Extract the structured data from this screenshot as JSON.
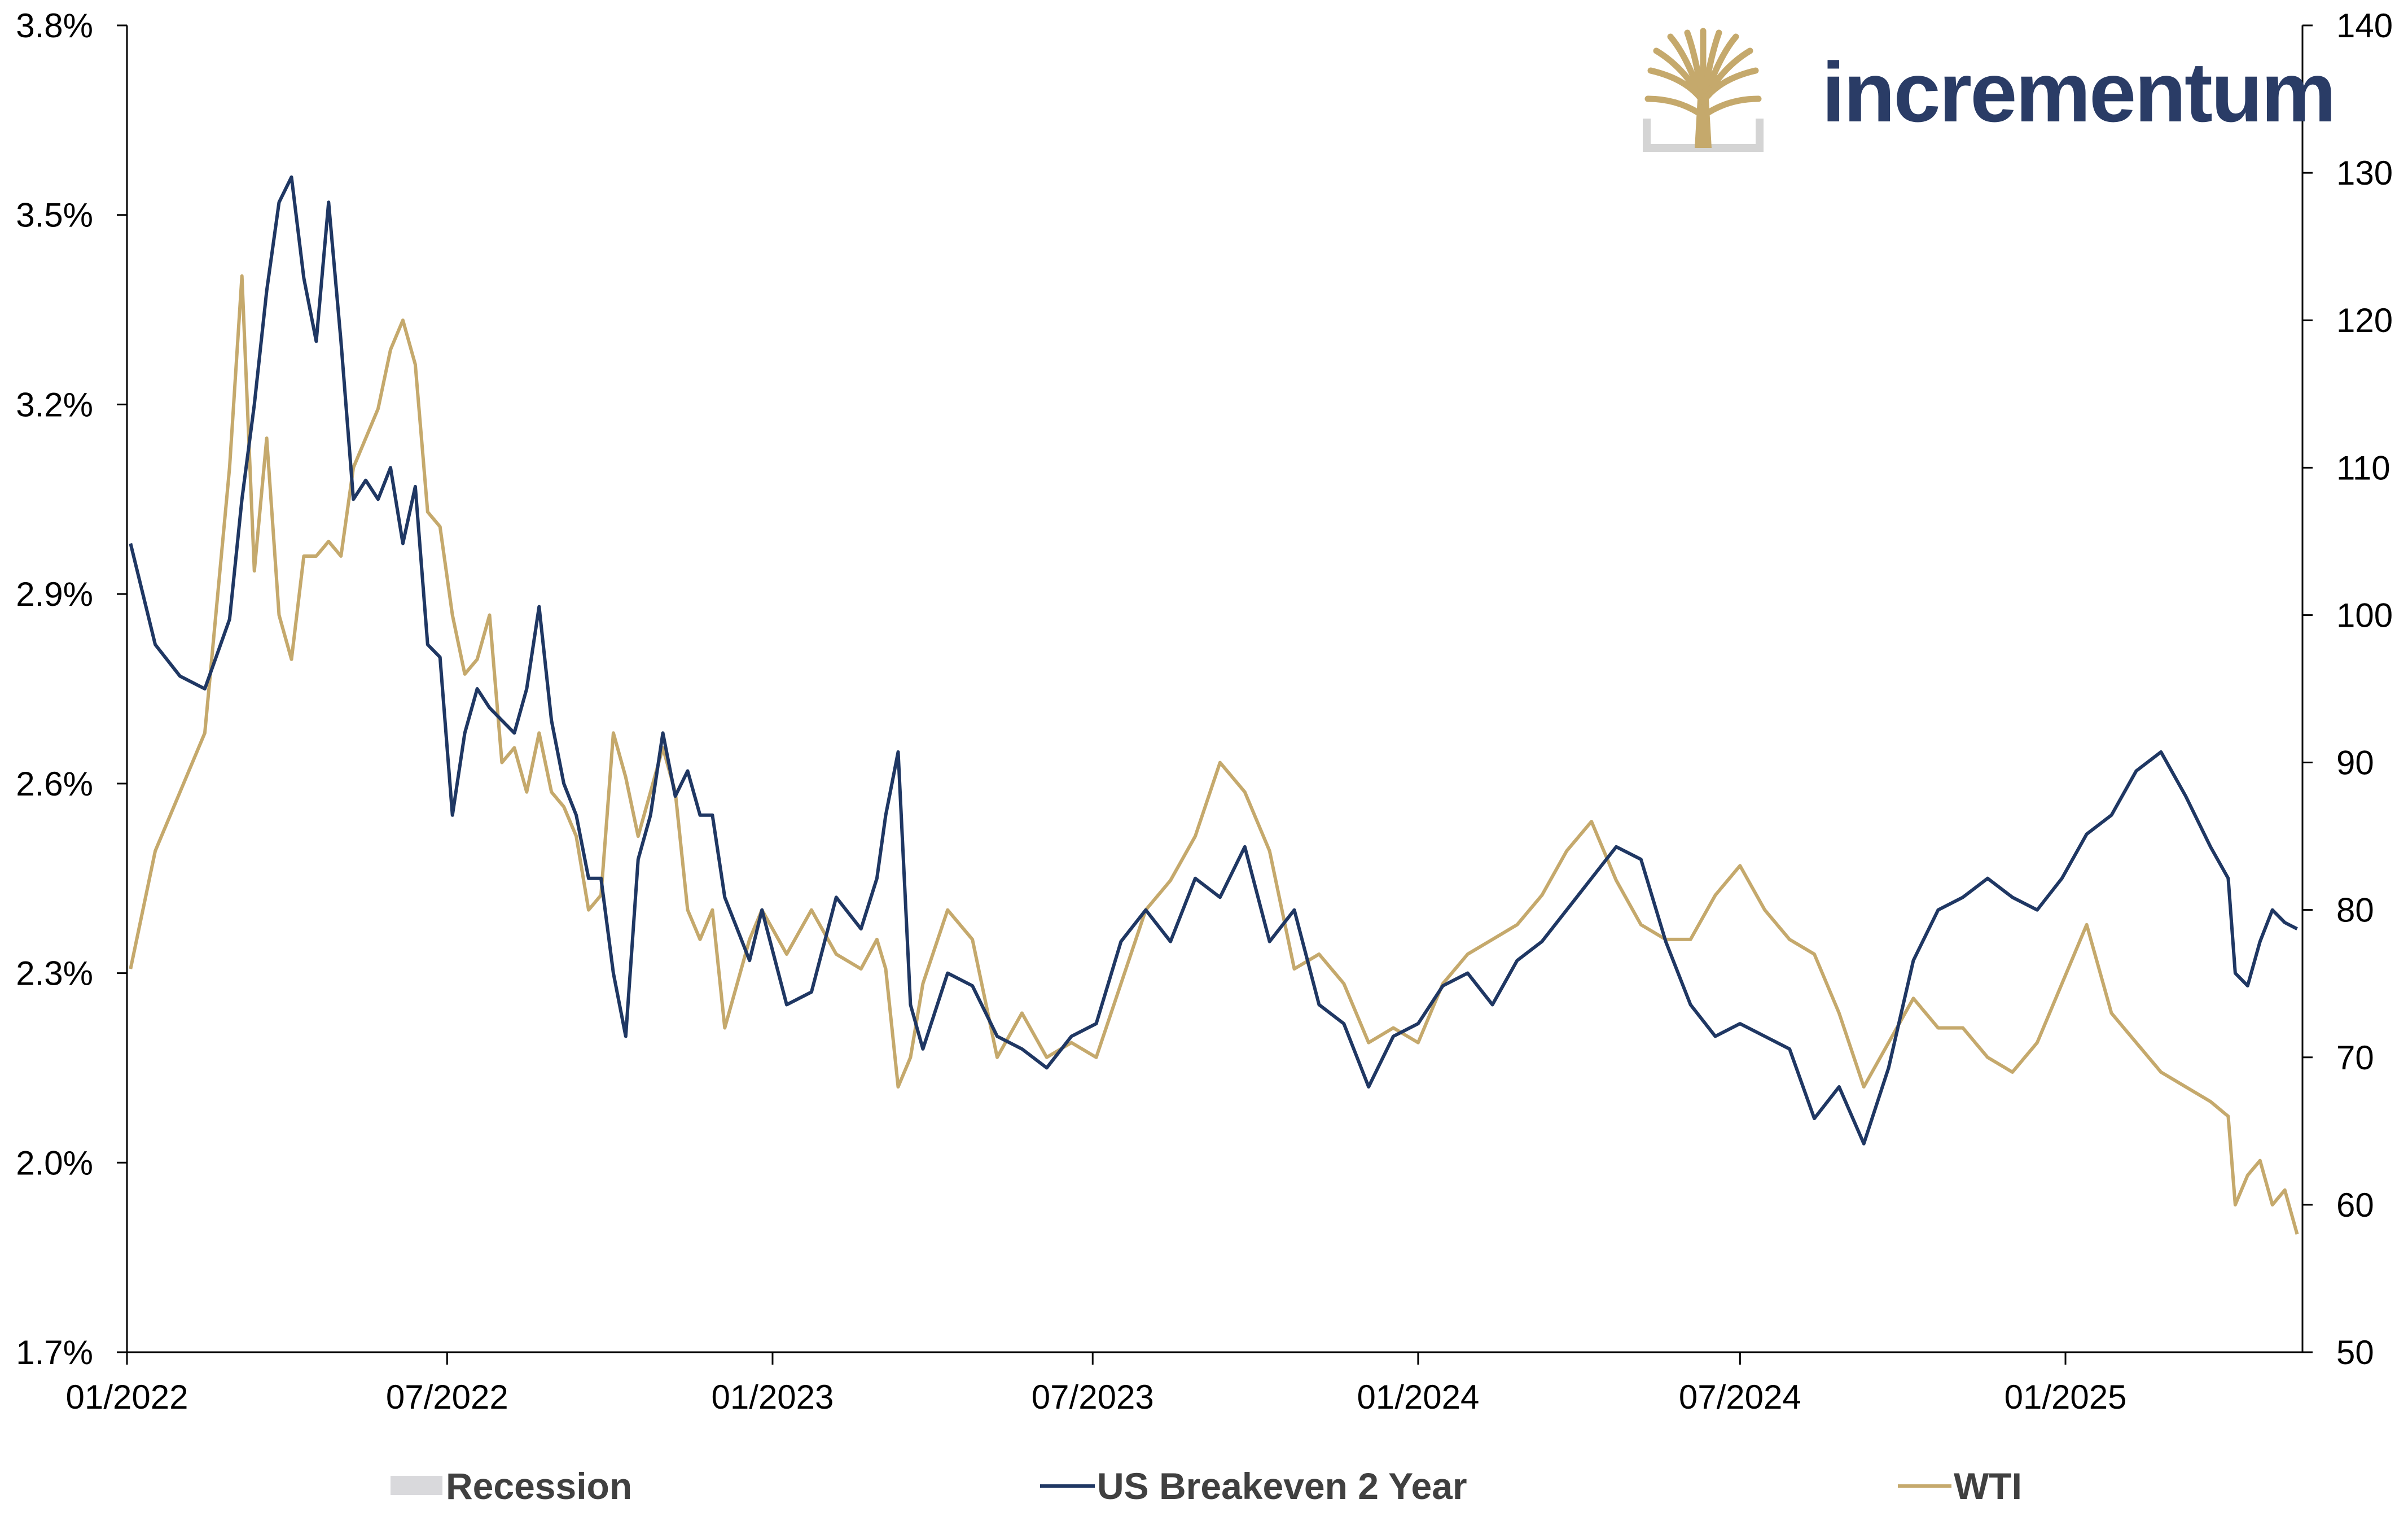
{
  "brand": {
    "name": "incrementum",
    "logo": "tree-logo-icon"
  },
  "colors": {
    "breakeven": "#1f3763",
    "wti": "#c5a96c",
    "recession": "#d9d9dc",
    "axis": "#000000",
    "brand_text": "#2a3c66",
    "brand_gold": "#c5a96c",
    "brand_grey": "#d4d4d4"
  },
  "chart_data": {
    "type": "line",
    "title": "",
    "xlabel": "",
    "y_left": {
      "label": "",
      "lim": [
        1.7,
        3.8
      ],
      "ticks": [
        1.7,
        2.0,
        2.3,
        2.6,
        2.9,
        3.2,
        3.5,
        3.8
      ],
      "tick_labels": [
        "1.7%",
        "2.0%",
        "2.3%",
        "2.6%",
        "2.9%",
        "3.2%",
        "3.5%",
        "3.8%"
      ]
    },
    "y_right": {
      "label": "",
      "lim": [
        50,
        140
      ],
      "ticks": [
        50,
        60,
        70,
        80,
        90,
        100,
        110,
        120,
        130,
        140
      ],
      "tick_labels": [
        "50",
        "60",
        "70",
        "80",
        "90",
        "100",
        "110",
        "120",
        "130",
        "140"
      ]
    },
    "x_ticks": [
      "01/2022",
      "07/2022",
      "01/2023",
      "07/2023",
      "01/2024",
      "07/2024",
      "01/2025"
    ],
    "x_range": [
      "2022-01",
      "2025-05"
    ],
    "legend_position": "bottom",
    "legend": [
      "Recession",
      "US Breakeven 2 Year",
      "WTI"
    ],
    "series": [
      {
        "name": "Recession",
        "axis": "left",
        "values": []
      },
      {
        "name": "US Breakeven 2 Year",
        "axis": "left",
        "x": [
          "2022-01-03",
          "2022-01-17",
          "2022-01-31",
          "2022-02-14",
          "2022-02-28",
          "2022-03-07",
          "2022-03-14",
          "2022-03-21",
          "2022-03-28",
          "2022-04-04",
          "2022-04-11",
          "2022-04-18",
          "2022-04-25",
          "2022-05-02",
          "2022-05-09",
          "2022-05-16",
          "2022-05-23",
          "2022-05-30",
          "2022-06-06",
          "2022-06-13",
          "2022-06-20",
          "2022-06-27",
          "2022-07-04",
          "2022-07-11",
          "2022-07-18",
          "2022-07-25",
          "2022-08-01",
          "2022-08-08",
          "2022-08-15",
          "2022-08-22",
          "2022-08-29",
          "2022-09-05",
          "2022-09-12",
          "2022-09-19",
          "2022-09-26",
          "2022-10-03",
          "2022-10-10",
          "2022-10-17",
          "2022-10-24",
          "2022-10-31",
          "2022-11-07",
          "2022-11-14",
          "2022-11-21",
          "2022-11-28",
          "2022-12-05",
          "2022-12-12",
          "2022-12-19",
          "2022-12-26",
          "2023-01-09",
          "2023-01-23",
          "2023-02-06",
          "2023-02-20",
          "2023-03-01",
          "2023-03-06",
          "2023-03-13",
          "2023-03-20",
          "2023-03-27",
          "2023-04-10",
          "2023-04-24",
          "2023-05-08",
          "2023-05-22",
          "2023-06-05",
          "2023-06-19",
          "2023-07-03",
          "2023-07-17",
          "2023-07-31",
          "2023-08-14",
          "2023-08-28",
          "2023-09-11",
          "2023-09-25",
          "2023-10-09",
          "2023-10-23",
          "2023-11-06",
          "2023-11-20",
          "2023-12-04",
          "2023-12-18",
          "2024-01-01",
          "2024-01-15",
          "2024-01-29",
          "2024-02-12",
          "2024-02-26",
          "2024-03-11",
          "2024-03-25",
          "2024-04-08",
          "2024-04-22",
          "2024-05-06",
          "2024-05-20",
          "2024-06-03",
          "2024-06-17",
          "2024-07-01",
          "2024-07-15",
          "2024-07-29",
          "2024-08-12",
          "2024-08-26",
          "2024-09-09",
          "2024-09-23",
          "2024-10-07",
          "2024-10-21",
          "2024-11-04",
          "2024-11-18",
          "2024-12-02",
          "2024-12-16",
          "2024-12-30",
          "2025-01-13",
          "2025-01-27",
          "2025-02-10",
          "2025-02-24",
          "2025-03-10",
          "2025-03-24",
          "2025-04-03",
          "2025-04-07",
          "2025-04-14",
          "2025-04-21",
          "2025-04-28",
          "2025-05-05",
          "2025-05-12"
        ],
        "values": [
          2.98,
          2.82,
          2.77,
          2.75,
          2.86,
          3.05,
          3.2,
          3.38,
          3.52,
          3.56,
          3.4,
          3.3,
          3.52,
          3.3,
          3.05,
          3.08,
          3.05,
          3.1,
          2.98,
          3.07,
          2.82,
          2.8,
          2.55,
          2.68,
          2.75,
          2.72,
          2.7,
          2.68,
          2.75,
          2.88,
          2.7,
          2.6,
          2.55,
          2.45,
          2.45,
          2.3,
          2.2,
          2.48,
          2.55,
          2.68,
          2.58,
          2.62,
          2.55,
          2.55,
          2.42,
          2.37,
          2.32,
          2.4,
          2.25,
          2.27,
          2.42,
          2.37,
          2.45,
          2.55,
          2.65,
          2.25,
          2.18,
          2.3,
          2.28,
          2.2,
          2.18,
          2.15,
          2.2,
          2.22,
          2.35,
          2.4,
          2.35,
          2.45,
          2.42,
          2.5,
          2.35,
          2.4,
          2.25,
          2.22,
          2.12,
          2.2,
          2.22,
          2.28,
          2.3,
          2.25,
          2.32,
          2.35,
          2.4,
          2.45,
          2.5,
          2.48,
          2.35,
          2.25,
          2.2,
          2.22,
          2.2,
          2.18,
          2.07,
          2.12,
          2.03,
          2.15,
          2.32,
          2.4,
          2.42,
          2.45,
          2.42,
          2.4,
          2.45,
          2.52,
          2.55,
          2.62,
          2.65,
          2.58,
          2.5,
          2.45,
          2.3,
          2.28,
          2.35,
          2.4,
          2.38,
          2.37
        ]
      },
      {
        "name": "WTI",
        "axis": "right",
        "x": [
          "2022-01-03",
          "2022-01-17",
          "2022-01-31",
          "2022-02-14",
          "2022-02-28",
          "2022-03-07",
          "2022-03-14",
          "2022-03-21",
          "2022-03-28",
          "2022-04-04",
          "2022-04-11",
          "2022-04-18",
          "2022-04-25",
          "2022-05-02",
          "2022-05-09",
          "2022-05-16",
          "2022-05-23",
          "2022-05-30",
          "2022-06-06",
          "2022-06-13",
          "2022-06-20",
          "2022-06-27",
          "2022-07-04",
          "2022-07-11",
          "2022-07-18",
          "2022-07-25",
          "2022-08-01",
          "2022-08-08",
          "2022-08-15",
          "2022-08-22",
          "2022-08-29",
          "2022-09-05",
          "2022-09-12",
          "2022-09-19",
          "2022-09-26",
          "2022-10-03",
          "2022-10-10",
          "2022-10-17",
          "2022-10-24",
          "2022-10-31",
          "2022-11-07",
          "2022-11-14",
          "2022-11-21",
          "2022-11-28",
          "2022-12-05",
          "2022-12-12",
          "2022-12-19",
          "2022-12-26",
          "2023-01-09",
          "2023-01-23",
          "2023-02-06",
          "2023-02-20",
          "2023-03-01",
          "2023-03-06",
          "2023-03-13",
          "2023-03-20",
          "2023-03-27",
          "2023-04-10",
          "2023-04-24",
          "2023-05-08",
          "2023-05-22",
          "2023-06-05",
          "2023-06-19",
          "2023-07-03",
          "2023-07-17",
          "2023-07-31",
          "2023-08-14",
          "2023-08-28",
          "2023-09-11",
          "2023-09-25",
          "2023-10-09",
          "2023-10-23",
          "2023-11-06",
          "2023-11-20",
          "2023-12-04",
          "2023-12-18",
          "2024-01-01",
          "2024-01-15",
          "2024-01-29",
          "2024-02-12",
          "2024-02-26",
          "2024-03-11",
          "2024-03-25",
          "2024-04-08",
          "2024-04-22",
          "2024-05-06",
          "2024-05-20",
          "2024-06-03",
          "2024-06-17",
          "2024-07-01",
          "2024-07-15",
          "2024-07-29",
          "2024-08-12",
          "2024-08-26",
          "2024-09-09",
          "2024-09-23",
          "2024-10-07",
          "2024-10-21",
          "2024-11-04",
          "2024-11-18",
          "2024-12-02",
          "2024-12-16",
          "2024-12-30",
          "2025-01-13",
          "2025-01-27",
          "2025-02-10",
          "2025-02-24",
          "2025-03-10",
          "2025-03-24",
          "2025-04-03",
          "2025-04-07",
          "2025-04-14",
          "2025-04-21",
          "2025-04-28",
          "2025-05-05",
          "2025-05-12"
        ],
        "values": [
          76,
          84,
          88,
          92,
          110,
          123,
          103,
          112,
          100,
          97,
          104,
          104,
          105,
          104,
          110,
          112,
          114,
          118,
          120,
          117,
          107,
          106,
          100,
          96,
          97,
          100,
          90,
          91,
          88,
          92,
          88,
          87,
          85,
          80,
          81,
          92,
          89,
          85,
          88,
          91,
          88,
          80,
          78,
          80,
          72,
          75,
          78,
          80,
          77,
          80,
          77,
          76,
          78,
          76,
          68,
          70,
          75,
          80,
          78,
          70,
          73,
          70,
          71,
          70,
          75,
          80,
          82,
          85,
          90,
          88,
          84,
          76,
          77,
          75,
          71,
          72,
          71,
          75,
          77,
          78,
          79,
          81,
          84,
          86,
          82,
          79,
          78,
          78,
          81,
          83,
          80,
          78,
          77,
          73,
          68,
          71,
          74,
          72,
          72,
          70,
          69,
          71,
          75,
          79,
          73,
          71,
          69,
          68,
          67,
          66,
          60,
          62,
          63,
          60,
          61,
          58
        ]
      }
    ]
  }
}
